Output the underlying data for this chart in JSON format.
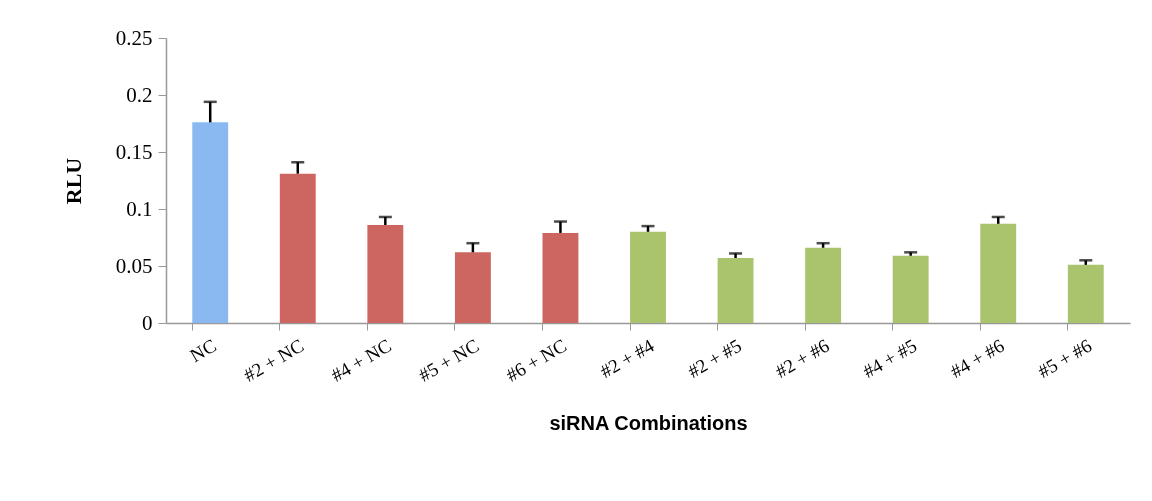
{
  "chart_data": {
    "type": "bar",
    "xlabel": "siRNA Combinations",
    "ylabel": "RLU",
    "categories": [
      "NC",
      "#2 + NC",
      "#4 + NC",
      "#5 + NC",
      "#6 + NC",
      "#2 + #4",
      "#2 + #5",
      "#2 + #6",
      "#4 + #5",
      "#4 + #6",
      "#5 + #6"
    ],
    "values": [
      0.176,
      0.131,
      0.086,
      0.062,
      0.079,
      0.08,
      0.057,
      0.066,
      0.059,
      0.087,
      0.051
    ],
    "errors": [
      [
        0.176,
        0.194
      ],
      [
        0.131,
        0.141
      ],
      [
        0.086,
        0.093
      ],
      [
        0.062,
        0.07
      ],
      [
        0.079,
        0.089
      ],
      [
        0.08,
        0.085
      ],
      [
        0.057,
        0.061
      ],
      [
        0.066,
        0.07
      ],
      [
        0.059,
        0.062
      ],
      [
        0.087,
        0.093
      ],
      [
        0.051,
        0.055
      ]
    ],
    "colors": [
      "#8ab8f0",
      "#cd6560",
      "#cd6560",
      "#cd6560",
      "#cd6560",
      "#a9c46c",
      "#a9c46c",
      "#a9c46c",
      "#a9c46c",
      "#a9c46c",
      "#a9c46c"
    ],
    "ylim": [
      0,
      0.25
    ],
    "yticks": [
      0,
      0.05,
      0.1,
      0.15,
      0.2,
      0.25
    ],
    "grid": false,
    "legend": false
  }
}
